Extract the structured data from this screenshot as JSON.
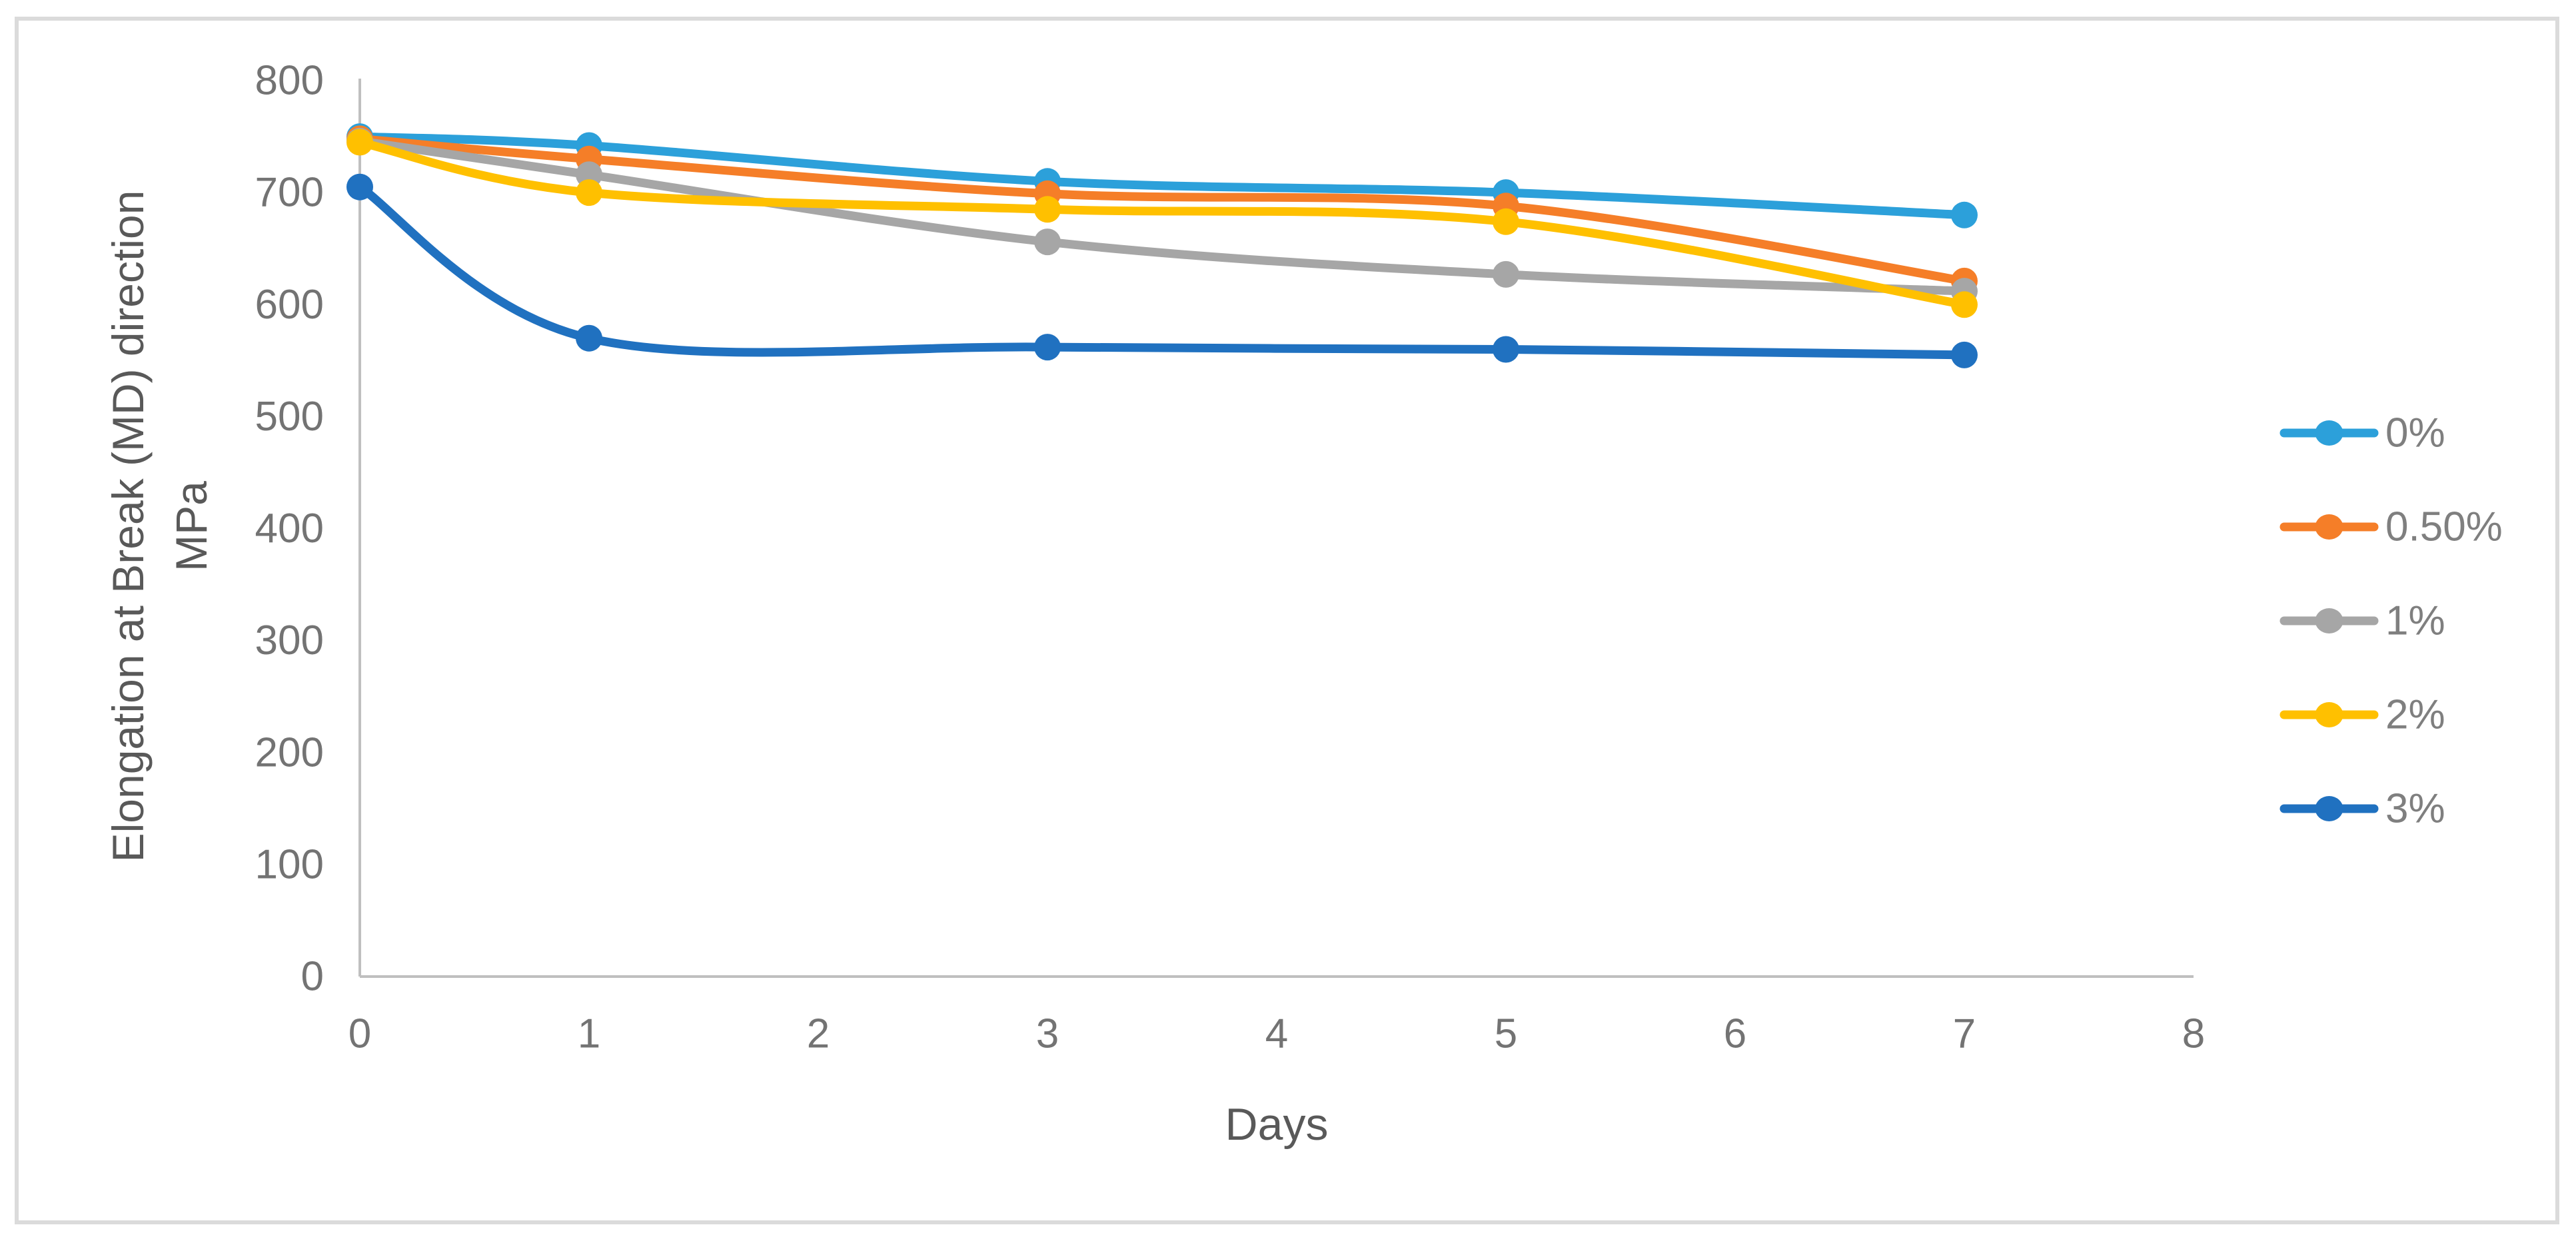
{
  "figure": {
    "background_color": "#FFFFFF",
    "border_color": "#DBDBDB"
  },
  "chart_data": {
    "type": "line",
    "title": "",
    "xlabel": "Days",
    "ylabel_lines": [
      "Elongation at Break (MD) direction",
      "MPa"
    ],
    "x": [
      0,
      1,
      3,
      5,
      7
    ],
    "xlim": [
      0,
      8
    ],
    "x_ticks": [
      0,
      1,
      2,
      3,
      4,
      5,
      6,
      7,
      8
    ],
    "ylim": [
      0,
      800
    ],
    "y_ticks": [
      0,
      100,
      200,
      300,
      400,
      500,
      600,
      700,
      800
    ],
    "grid": false,
    "smooth": true,
    "marker": "circle",
    "legend_position": "right",
    "series": [
      {
        "name": "0%",
        "color": "#2CA0DA",
        "values": [
          750,
          742,
          710,
          700,
          680
        ]
      },
      {
        "name": "0.50%",
        "color": "#F57E28",
        "values": [
          748,
          730,
          699,
          688,
          621
        ]
      },
      {
        "name": "1%",
        "color": "#A6A6A6",
        "values": [
          746,
          716,
          656,
          627,
          612
        ]
      },
      {
        "name": "2%",
        "color": "#FFC000",
        "values": [
          745,
          700,
          685,
          674,
          600
        ]
      },
      {
        "name": "3%",
        "color": "#2071C0",
        "values": [
          705,
          570,
          562,
          560,
          555
        ]
      }
    ],
    "axis_line_color": "#BFBFBF",
    "tick_label_color": "#737373",
    "axis_title_color": "#595959",
    "legend_label_color": "#7F7F7F"
  }
}
